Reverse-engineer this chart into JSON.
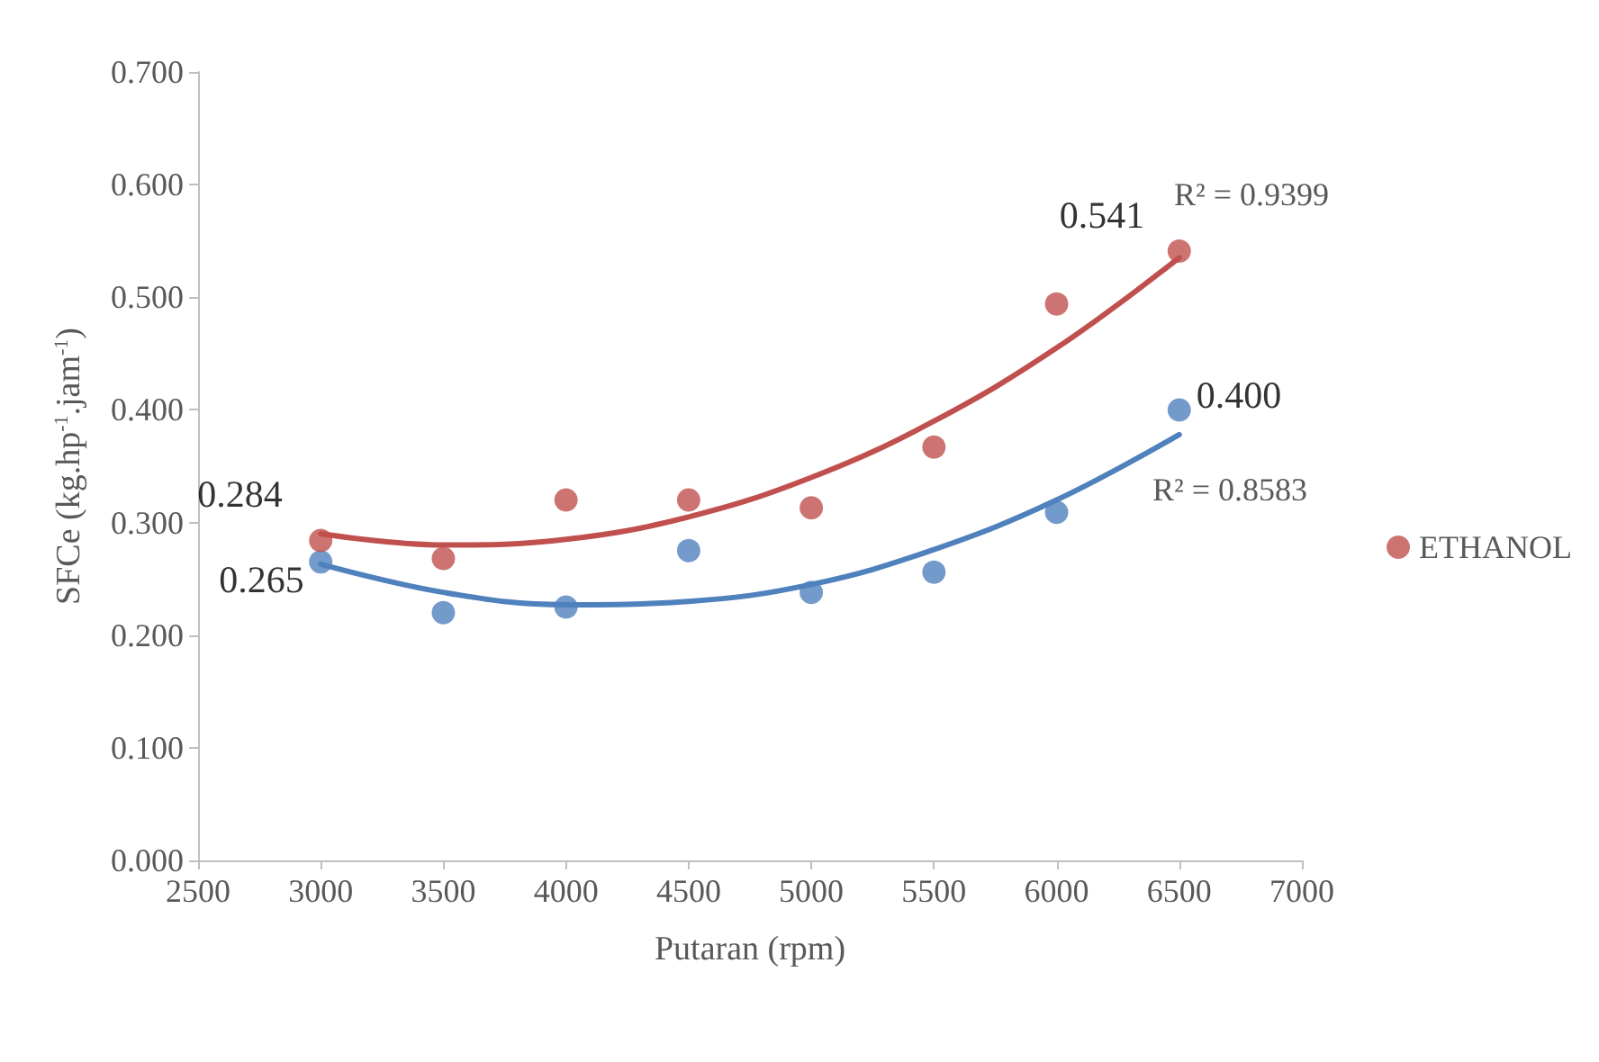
{
  "chart_data": {
    "type": "scatter",
    "xlabel": "Putaran (rpm)",
    "ylabel": "SFCe (kg.hp$^{-1}$.jam$^{-1}$)",
    "xlim": [
      2500,
      7000
    ],
    "xticks": [
      2500,
      3000,
      3500,
      4000,
      4500,
      5000,
      5500,
      6000,
      6500,
      7000
    ],
    "ylim": [
      0,
      0.7
    ],
    "yticks": [
      {
        "value": 0,
        "label": "0.000"
      },
      {
        "value": 0.1,
        "label": "0.100"
      },
      {
        "value": 0.2,
        "label": "0.200"
      },
      {
        "value": 0.3,
        "label": "0.300"
      },
      {
        "value": 0.4,
        "label": "0.400"
      },
      {
        "value": 0.5,
        "label": "0.500"
      },
      {
        "value": 0.6,
        "label": "0.600"
      },
      {
        "value": 0.7,
        "label": "0.700"
      }
    ],
    "grid": false,
    "legend": "right",
    "marker": "circle",
    "series": [
      {
        "color": "#4f81bd",
        "x": [
          3000,
          3500,
          4000,
          4500,
          5000,
          5500,
          6000,
          6500
        ],
        "values": [
          0.265,
          0.22,
          0.225,
          0.275,
          0.238,
          0.256,
          0.309,
          0.4
        ],
        "value_labels": [
          "0.265",
          null,
          null,
          null,
          null,
          null,
          null,
          "0.400"
        ]
      },
      {
        "name": "ETHANOL",
        "color": "#c0504d",
        "x": [
          3000,
          3500,
          4000,
          4500,
          5000,
          5500,
          6000,
          6500
        ],
        "values": [
          0.284,
          0.268,
          0.32,
          0.32,
          0.313,
          0.367,
          0.494,
          0.541
        ],
        "value_labels": [
          "0.284",
          null,
          null,
          null,
          null,
          null,
          null,
          "0.541"
        ]
      },
      {
        "type": "line",
        "color": "#4f81bd",
        "marker": "none",
        "line_style": "solid",
        "x": [
          3000,
          3500,
          4000,
          4500,
          5000,
          5500,
          6000,
          6500
        ],
        "values": [
          0.263,
          0.238,
          0.227,
          0.23,
          0.245,
          0.276,
          0.32,
          0.378
        ]
      },
      {
        "type": "line",
        "color": "#c0504d",
        "marker": "none",
        "line_style": "solid",
        "x": [
          3000,
          3500,
          4000,
          4500,
          5000,
          5500,
          6000,
          6500
        ],
        "values": [
          0.29,
          0.28,
          0.285,
          0.305,
          0.34,
          0.39,
          0.455,
          0.535
        ]
      }
    ],
    "annotations": [
      "R² = 0.9399",
      "R² = 0.8583"
    ]
  }
}
